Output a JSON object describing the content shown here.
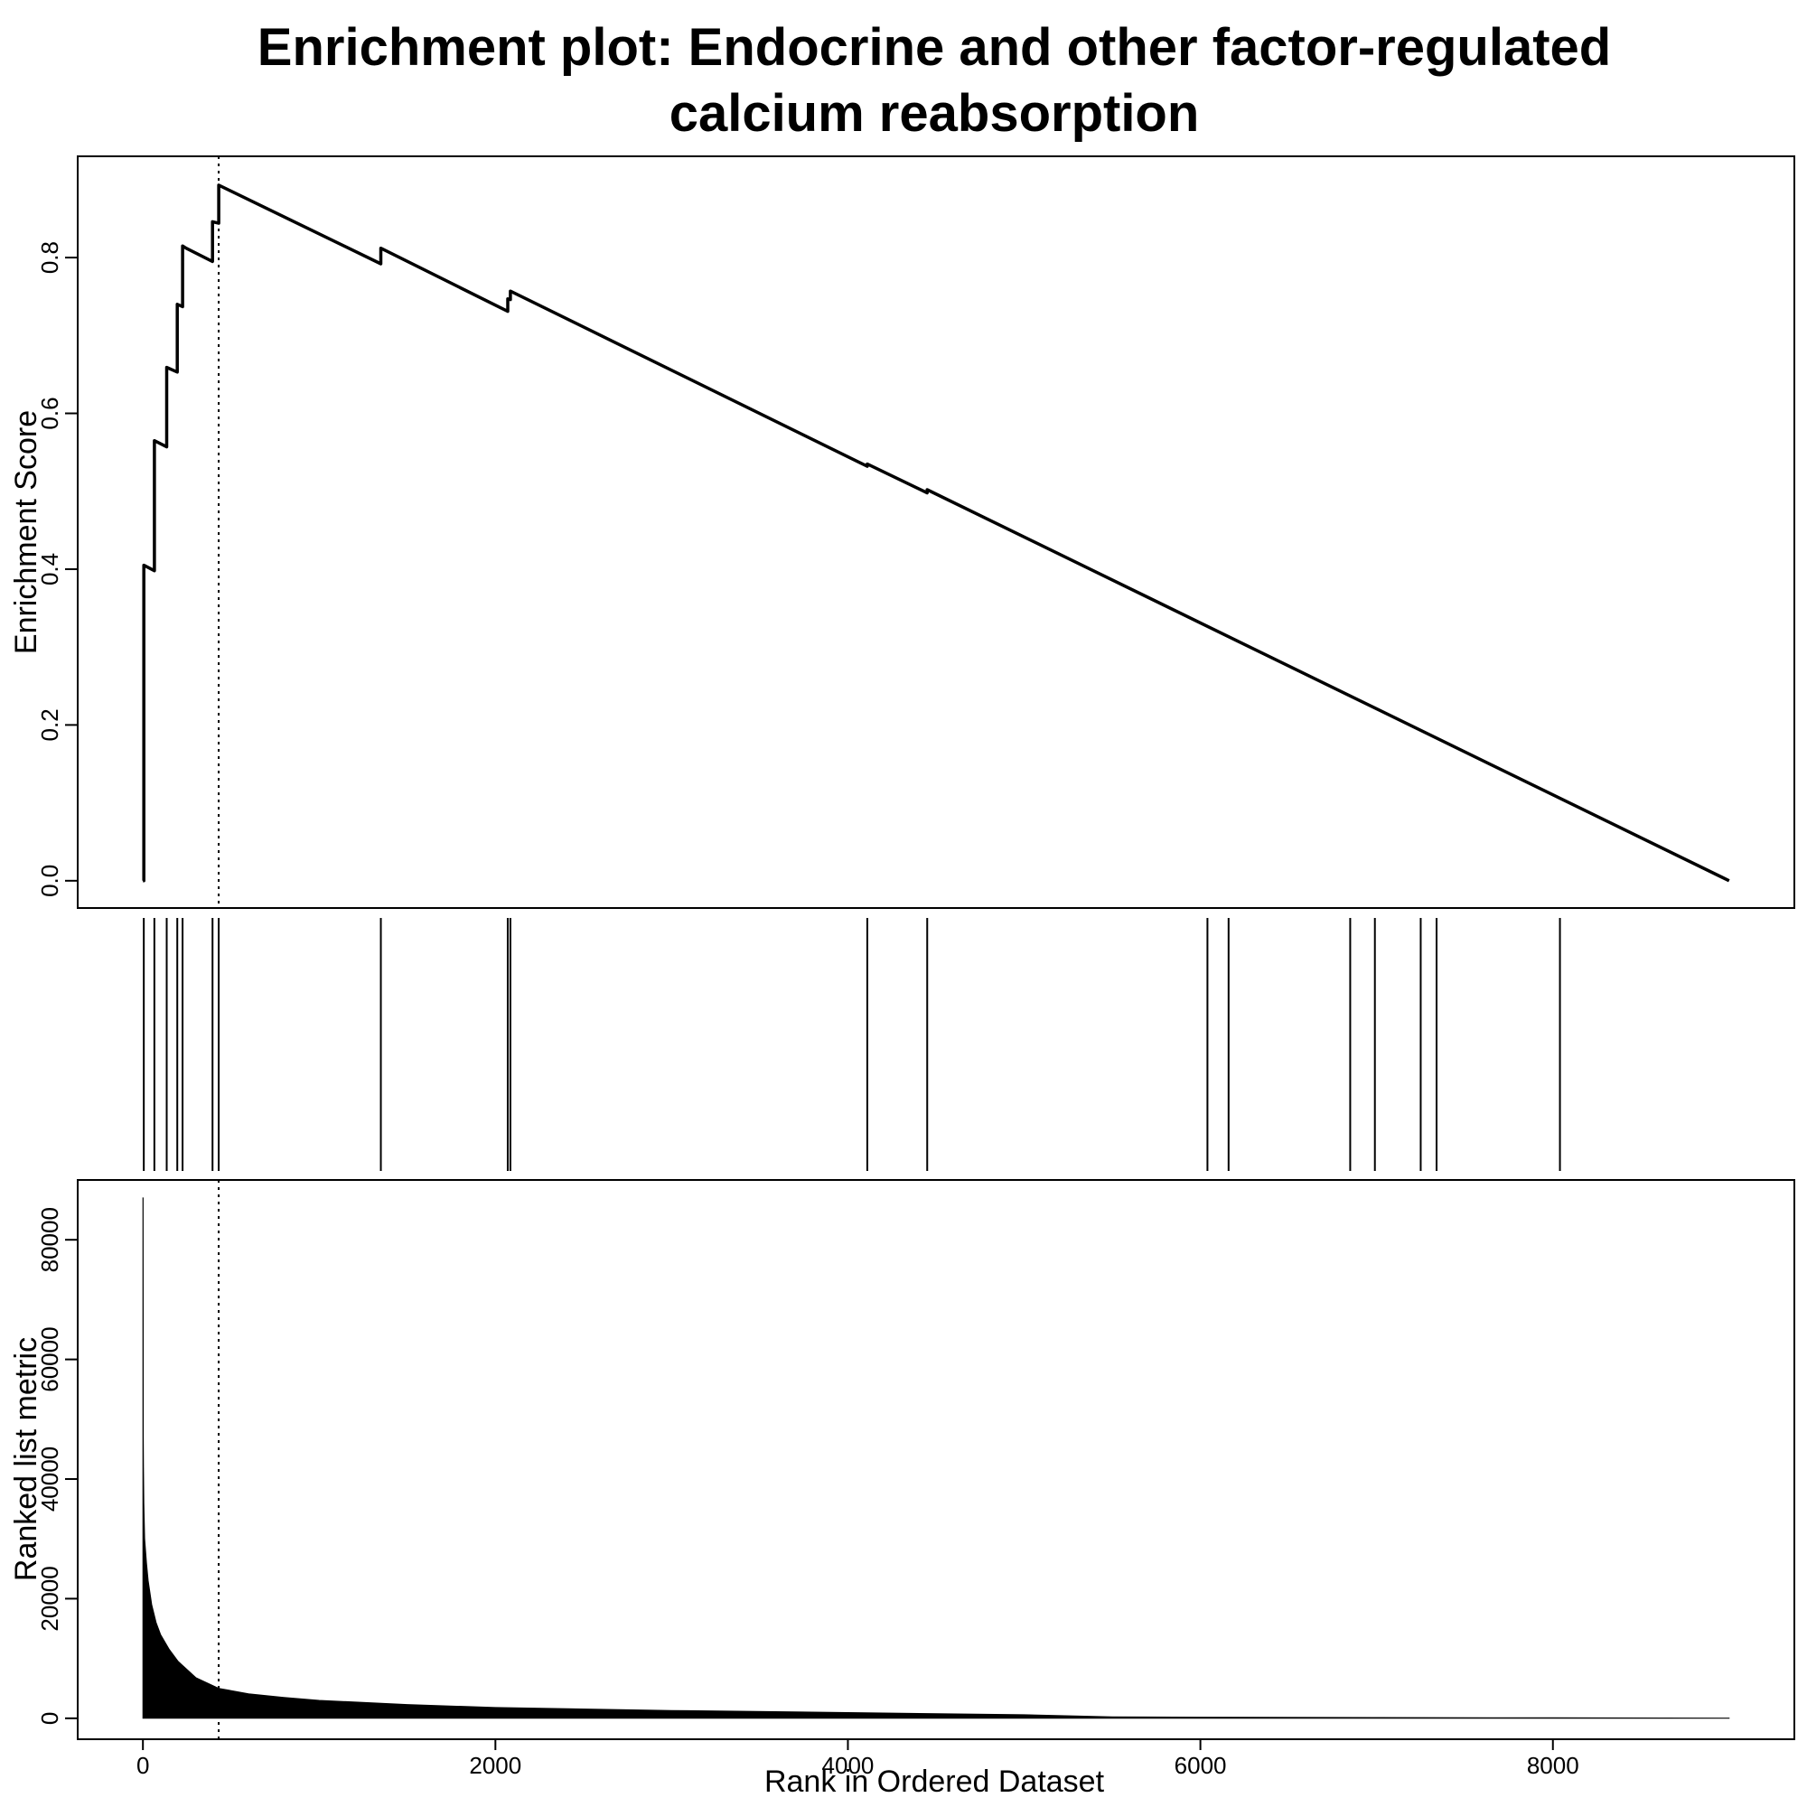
{
  "chart_data": {
    "type": "line",
    "title_lines": [
      "Enrichment plot: Endocrine and other factor-regulated",
      "calcium reabsorption"
    ],
    "xlabel": "Rank in Ordered Dataset",
    "xlim": [
      -370,
      9370
    ],
    "x_ticks": [
      0,
      2000,
      4000,
      6000,
      8000
    ],
    "x_tick_labels": [
      "0",
      "2000",
      "4000",
      "6000",
      "8000"
    ],
    "dotted_line_x": 430,
    "enrichment": {
      "ylabel": "Enrichment Score",
      "ylim": [
        -0.035,
        0.93
      ],
      "y_ticks": [
        0.0,
        0.2,
        0.4,
        0.6,
        0.8
      ],
      "y_tick_labels": [
        "0.0",
        "0.2",
        "0.4",
        "0.6",
        "0.8"
      ],
      "x": [
        0,
        5,
        5,
        65,
        65,
        135,
        135,
        195,
        195,
        225,
        225,
        245,
        245,
        395,
        395,
        430,
        430,
        1350,
        1350,
        2070,
        2070,
        2085,
        2085,
        4110,
        4110,
        4450,
        4450,
        9000
      ],
      "y": [
        0,
        0,
        0.405,
        0.398,
        0.565,
        0.557,
        0.659,
        0.653,
        0.74,
        0.737,
        0.815,
        0.812,
        0.812,
        0.795,
        0.846,
        0.844,
        0.893,
        0.792,
        0.812,
        0.731,
        0.747,
        0.746,
        0.757,
        0.532,
        0.535,
        0.498,
        0.502,
        0.0
      ]
    },
    "hits": {
      "x": [
        5,
        65,
        135,
        195,
        225,
        395,
        430,
        1350,
        2070,
        2085,
        4110,
        4450,
        6040,
        6160,
        6850,
        6990,
        7250,
        7340,
        8040
      ]
    },
    "ranked_metric": {
      "ylabel": "Ranked list metric",
      "ylim": [
        -3500,
        90000
      ],
      "y_ticks": [
        0,
        20000,
        40000,
        60000,
        80000
      ],
      "y_tick_labels": [
        "0",
        "20000",
        "40000",
        "60000",
        "80000"
      ],
      "x": [
        0,
        1,
        2,
        3,
        5,
        10,
        20,
        30,
        50,
        75,
        100,
        150,
        200,
        300,
        430,
        600,
        800,
        1000,
        1500,
        2000,
        3000,
        4000,
        5000,
        5500,
        6000,
        7000,
        8000,
        9000
      ],
      "y": [
        87000,
        87000,
        47000,
        42000,
        36000,
        30000,
        26000,
        23000,
        19000,
        16000,
        14000,
        11500,
        9500,
        6800,
        5000,
        4100,
        3500,
        3000,
        2300,
        1800,
        1300,
        950,
        600,
        250,
        180,
        120,
        80,
        40
      ]
    }
  }
}
